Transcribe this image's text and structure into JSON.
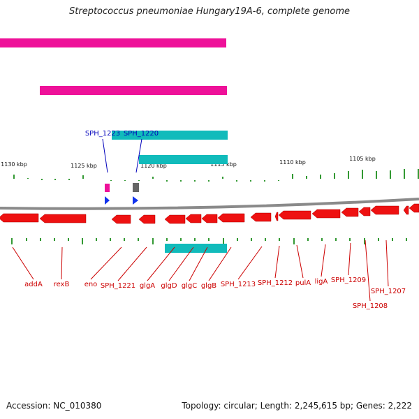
{
  "title": "Streptococcus pneumoniae Hungary19A-6, complete genome",
  "footer": {
    "accession": "Accession: NC_010380",
    "summary": "Topology: circular; Length: 2,245,615 bp; Genes: 2,222"
  },
  "coordinates": [
    "1130 kbp",
    "1125 kbp",
    "1120 kbp",
    "1115 kbp",
    "1110 kbp",
    "1105 kbp"
  ],
  "colors": {
    "cds_arrow": "#ee1111",
    "label_red": "#cc0000",
    "label_blue": "#0000bb",
    "tick": "#339933",
    "backbone": "#8a8a8a",
    "magenta": "#ee1199",
    "teal": "#11bbbb",
    "cyan": "#22dddd",
    "orange": "#ff9900",
    "gray": "#bbbbbb",
    "dark_gray": "#666666",
    "blue": "#1133ee"
  },
  "upper_features": [
    "SPH_1223",
    "SPH_1220"
  ],
  "genes": [
    "addA",
    "rexB",
    "eno",
    "SPH_1221",
    "glgA",
    "glgD",
    "glgC",
    "glgB",
    "SPH_1213",
    "SPH_1212",
    "pulA",
    "ligA",
    "SPH_1209",
    "SPH_1208",
    "SPH_1207"
  ]
}
